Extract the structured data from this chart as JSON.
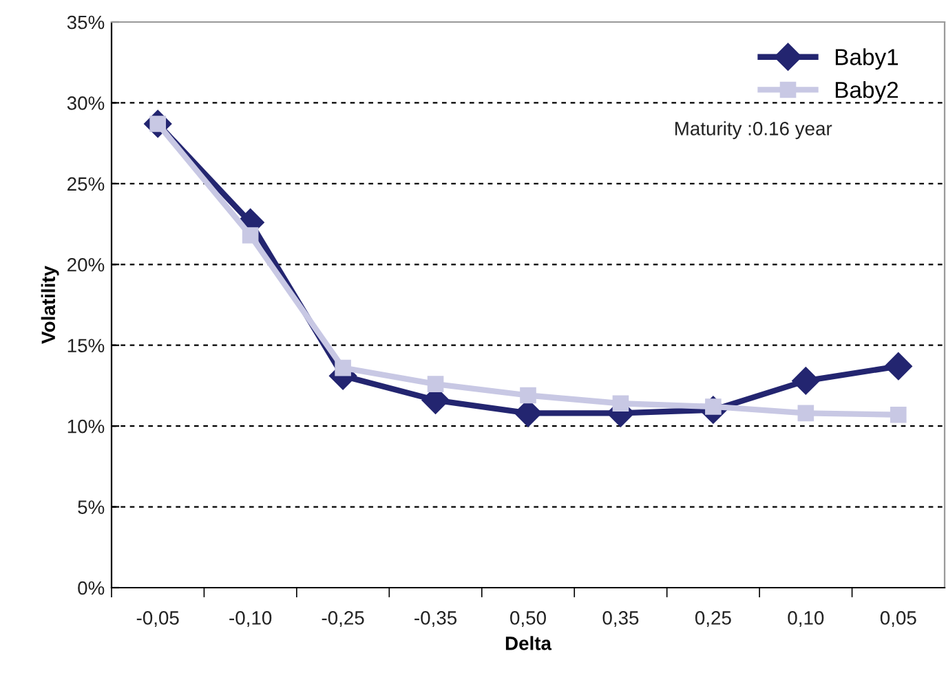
{
  "chart_data": {
    "type": "line",
    "xlabel": "Delta",
    "ylabel": "Volatility",
    "categories": [
      "-0,05",
      "-0,10",
      "-0,25",
      "-0,35",
      "0,50",
      "0,35",
      "0,25",
      "0,10",
      "0,05"
    ],
    "series": [
      {
        "name": "Baby1",
        "color": "#232570",
        "marker": "diamond",
        "values": [
          0.287,
          0.226,
          0.131,
          0.116,
          0.108,
          0.108,
          0.11,
          0.128,
          0.137
        ]
      },
      {
        "name": "Baby2",
        "color": "#c8c8e4",
        "marker": "square",
        "values": [
          0.287,
          0.218,
          0.136,
          0.126,
          0.119,
          0.114,
          0.112,
          0.108,
          0.107
        ]
      }
    ],
    "ylim": [
      0,
      0.35
    ],
    "yticks": [
      {
        "value": 0,
        "label": "0%"
      },
      {
        "value": 0.05,
        "label": "5%"
      },
      {
        "value": 0.1,
        "label": "10%"
      },
      {
        "value": 0.15,
        "label": "15%"
      },
      {
        "value": 0.2,
        "label": "20%"
      },
      {
        "value": 0.25,
        "label": "25%"
      },
      {
        "value": 0.3,
        "label": "30%"
      },
      {
        "value": 0.35,
        "label": "35%"
      }
    ],
    "grid": "y",
    "legend": "top right",
    "line_style": "solid",
    "annotations": [
      "Maturity :0.16 year"
    ]
  }
}
